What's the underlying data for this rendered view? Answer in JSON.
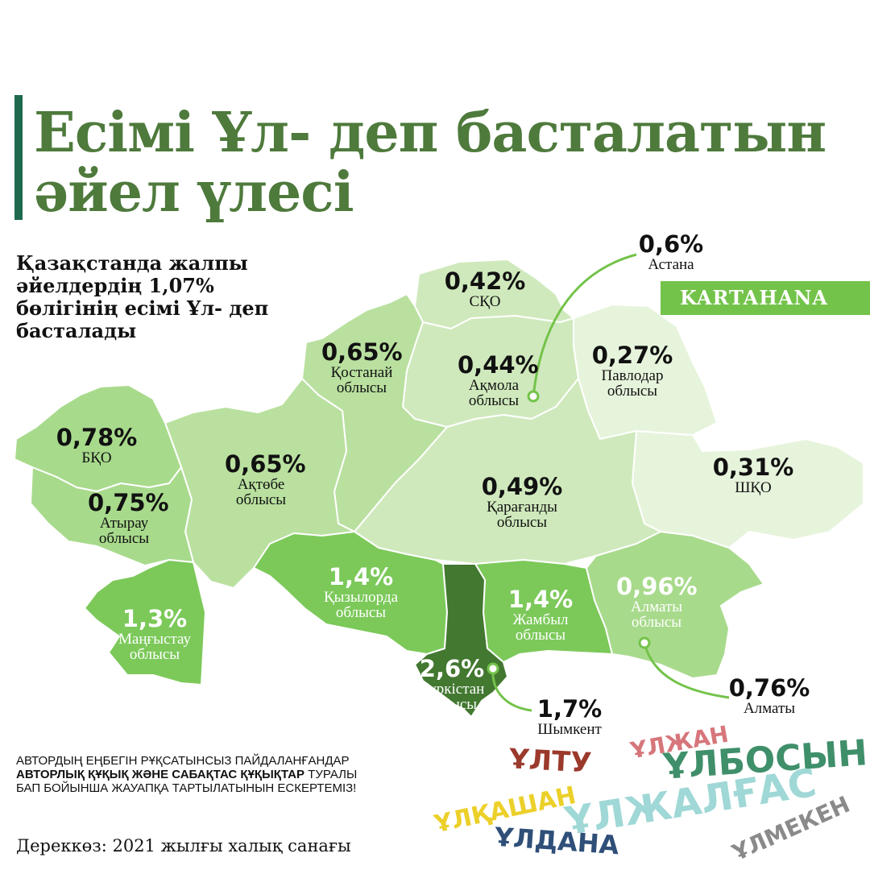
{
  "title": {
    "line1": "Есімі Ұл- деп басталатын",
    "line2": "әйел үлесі"
  },
  "intro": "Қазақстанда жалпы әйелдердің 1,07% бөлігінің есімі Ұл- деп басталады",
  "brand": "KARTAHANA",
  "colors": {
    "title": "#4e7a3c",
    "accent_bar": "#1f6a4f",
    "brand_bg": "#73c34a"
  },
  "regions": [
    {
      "id": "bko",
      "value": "0,78%",
      "name": "БҚО"
    },
    {
      "id": "atyrau",
      "value": "0,75%",
      "name": "Атырау облысы"
    },
    {
      "id": "aktobe",
      "value": "0,65%",
      "name": "Ақтөбе облысы"
    },
    {
      "id": "kostanay",
      "value": "0,65%",
      "name": "Қостанай облысы"
    },
    {
      "id": "sko",
      "value": "0,42%",
      "name": "СҚО"
    },
    {
      "id": "akmola",
      "value": "0,44%",
      "name": "Ақмола облысы"
    },
    {
      "id": "pavlodar",
      "value": "0,27%",
      "name": "Павлодар облысы"
    },
    {
      "id": "karaganda",
      "value": "0,49%",
      "name": "Қарағанды облысы"
    },
    {
      "id": "vko",
      "value": "0,31%",
      "name": "ШҚО"
    },
    {
      "id": "mangystau",
      "value": "1,3%",
      "name": "Маңғыстау облысы"
    },
    {
      "id": "kyzylorda",
      "value": "1,4%",
      "name": "Қызылорда облысы"
    },
    {
      "id": "zhambyl",
      "value": "1,4%",
      "name": "Жамбыл облысы"
    },
    {
      "id": "almaty_obl",
      "value": "0,96%",
      "name": "Алматы облысы"
    },
    {
      "id": "turkistan",
      "value": "2,6%",
      "name": "Түркістан облысы"
    }
  ],
  "cities": [
    {
      "id": "astana",
      "value": "0,6%",
      "name": "Астана"
    },
    {
      "id": "almaty",
      "value": "0,76%",
      "name": "Алматы"
    },
    {
      "id": "shymkent",
      "value": "1,7%",
      "name": "Шымкент"
    }
  ],
  "copyright": {
    "p1": "АВТОРДЫҢ ЕҢБЕГІН РҰҚСАТЫНСЫЗ ПАЙДАЛАНҒАНДАР ",
    "b1": "АВТОРЛЫҚ ҚҰҚЫҚ ЖӘНЕ САБАҚТАС ҚҰҚЫҚТАР",
    "p2": " ТУРАЛЫ БАП БОЙЫНША ЖАУАПҚА ТАРТЫЛАТЫНЫН ЕСКЕРТЕМІЗ!"
  },
  "source": "Дереккөз: 2021 жылғы халық санағы",
  "names": [
    {
      "text": "ҰЛТУ",
      "color": "#9b3a2c"
    },
    {
      "text": "ҰЛЖАН",
      "color": "#d6767b"
    },
    {
      "text": "ҰЛБОСЫН",
      "color": "#3f8f6a"
    },
    {
      "text": "ҰЛҚАШАН",
      "color": "#ecd02a"
    },
    {
      "text": "ҰЛЖАЛҒАС",
      "color": "#9fd8d6"
    },
    {
      "text": "ҰЛДАНА",
      "color": "#2f4f78"
    },
    {
      "text": "ҰЛМЕКЕН",
      "color": "#8a8a8a"
    }
  ]
}
